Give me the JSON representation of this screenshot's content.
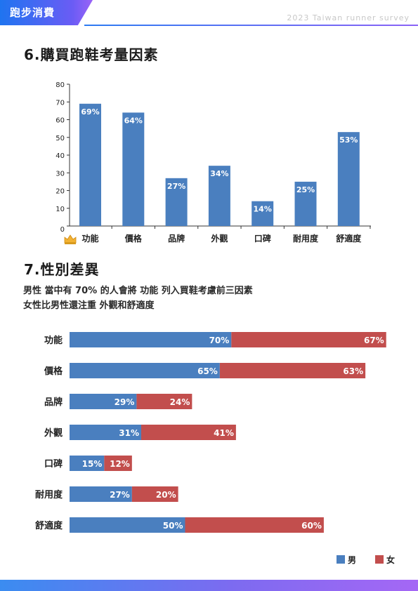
{
  "header": {
    "tag_label": "跑步消費",
    "survey_label": "2023 Taiwan runner survey"
  },
  "section6": {
    "title": "6.購買跑鞋考量因素"
  },
  "section7": {
    "title": "7.性別差異",
    "note_1": "男性 當中有 70% 的人會將 功能  列入買鞋考慮前三因素",
    "note_2": "女性比男性還注重 外觀和舒適度"
  },
  "icons": {
    "top_factor_marker": "crown-icon"
  },
  "colors": {
    "male": "#4a7fbf",
    "female": "#c24e4d",
    "accent": "#2c7bf2"
  },
  "chart_data": [
    {
      "type": "bar",
      "title": "",
      "categories": [
        "功能",
        "價格",
        "品牌",
        "外觀",
        "口碑",
        "耐用度",
        "舒適度"
      ],
      "values": [
        69,
        64,
        27,
        34,
        14,
        25,
        53
      ],
      "value_labels": [
        "69%",
        "64%",
        "27%",
        "34%",
        "14%",
        "25%",
        "53%"
      ],
      "ylim": [
        0,
        80
      ],
      "yticks": [
        0,
        10,
        20,
        30,
        40,
        50,
        60,
        70,
        80
      ],
      "grid": false,
      "color": "#4a7fbf"
    },
    {
      "type": "bar",
      "orientation": "horizontal",
      "stacked": true,
      "categories": [
        "功能",
        "價格",
        "品牌",
        "外觀",
        "口碑",
        "耐用度",
        "舒適度"
      ],
      "series": [
        {
          "name": "男",
          "values": [
            70,
            65,
            29,
            31,
            15,
            27,
            50
          ],
          "labels": [
            "70%",
            "65%",
            "29%",
            "31%",
            "15%",
            "27%",
            "50%"
          ],
          "color": "#4a7fbf"
        },
        {
          "name": "女",
          "values": [
            67,
            63,
            24,
            41,
            12,
            20,
            60
          ],
          "labels": [
            "67%",
            "63%",
            "24%",
            "41%",
            "12%",
            "20%",
            "60%"
          ],
          "color": "#c24e4d"
        }
      ],
      "legend": "bottom-right",
      "grid": false
    }
  ]
}
